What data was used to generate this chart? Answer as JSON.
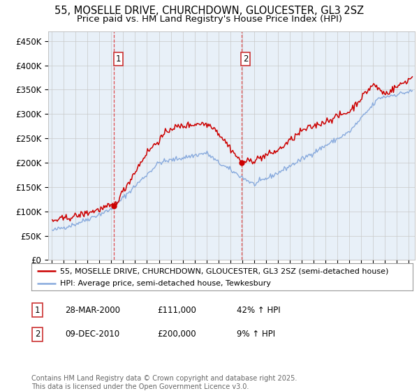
{
  "title1": "55, MOSELLE DRIVE, CHURCHDOWN, GLOUCESTER, GL3 2SZ",
  "title2": "Price paid vs. HM Land Registry's House Price Index (HPI)",
  "ylabel_ticks": [
    "£0",
    "£50K",
    "£100K",
    "£150K",
    "£200K",
    "£250K",
    "£300K",
    "£350K",
    "£400K",
    "£450K"
  ],
  "ytick_values": [
    0,
    50000,
    100000,
    150000,
    200000,
    250000,
    300000,
    350000,
    400000,
    450000
  ],
  "ylim": [
    0,
    470000
  ],
  "xlim_start": 1994.7,
  "xlim_end": 2025.5,
  "red_line_color": "#cc0000",
  "blue_line_color": "#88aadd",
  "vline_color": "#dd3333",
  "marker1_x": 2000.24,
  "marker1_y": 111000,
  "marker2_x": 2010.93,
  "marker2_y": 200000,
  "legend_red_label": "55, MOSELLE DRIVE, CHURCHDOWN, GLOUCESTER, GL3 2SZ (semi-detached house)",
  "legend_blue_label": "HPI: Average price, semi-detached house, Tewkesbury",
  "table_row1": [
    "1",
    "28-MAR-2000",
    "£111,000",
    "42% ↑ HPI"
  ],
  "table_row2": [
    "2",
    "09-DEC-2010",
    "£200,000",
    "9% ↑ HPI"
  ],
  "footer_text": "Contains HM Land Registry data © Crown copyright and database right 2025.\nThis data is licensed under the Open Government Licence v3.0.",
  "plot_bg_color": "#e8f0f8",
  "title_fontsize": 10.5,
  "subtitle_fontsize": 9.5,
  "tick_fontsize": 8.5,
  "legend_fontsize": 8,
  "table_fontsize": 8.5,
  "footer_fontsize": 7
}
